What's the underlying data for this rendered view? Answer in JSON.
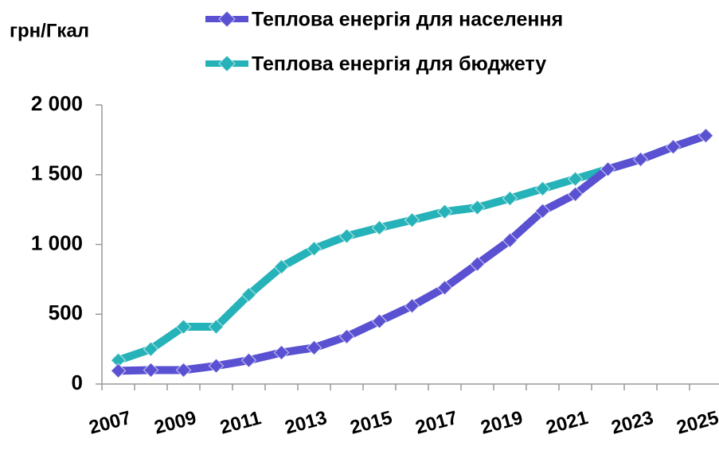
{
  "chart_data": {
    "type": "line",
    "y_label": "грн/Гкал",
    "legend": "top",
    "categories": [
      "2007",
      null,
      "2009",
      null,
      "2011",
      null,
      "2013",
      null,
      "2015",
      null,
      "2017",
      null,
      "2019",
      null,
      "2021",
      null,
      "2023",
      null,
      "2025"
    ],
    "series": [
      {
        "name": "Теплова енергія  для населення",
        "color": "#5a50d2",
        "values": [
          95,
          100,
          100,
          130,
          170,
          225,
          260,
          340,
          450,
          560,
          690,
          860,
          1030,
          1240,
          1360,
          1540,
          1610,
          1700,
          1780
        ]
      },
      {
        "name": "Теплова енергія  для бюджету",
        "color": "#25b2b8",
        "values": [
          170,
          250,
          410,
          410,
          640,
          840,
          970,
          1060,
          1120,
          1175,
          1235,
          1265,
          1330,
          1400,
          1470,
          1540,
          1610,
          1700,
          1780
        ]
      }
    ],
    "ylim": [
      0,
      2000
    ],
    "yticks": [
      0,
      500,
      {
        "value": 1000,
        "label": "1 000"
      },
      {
        "value": 1500,
        "label": "1 500"
      },
      {
        "value": 2000,
        "label": "2 000"
      }
    ]
  }
}
